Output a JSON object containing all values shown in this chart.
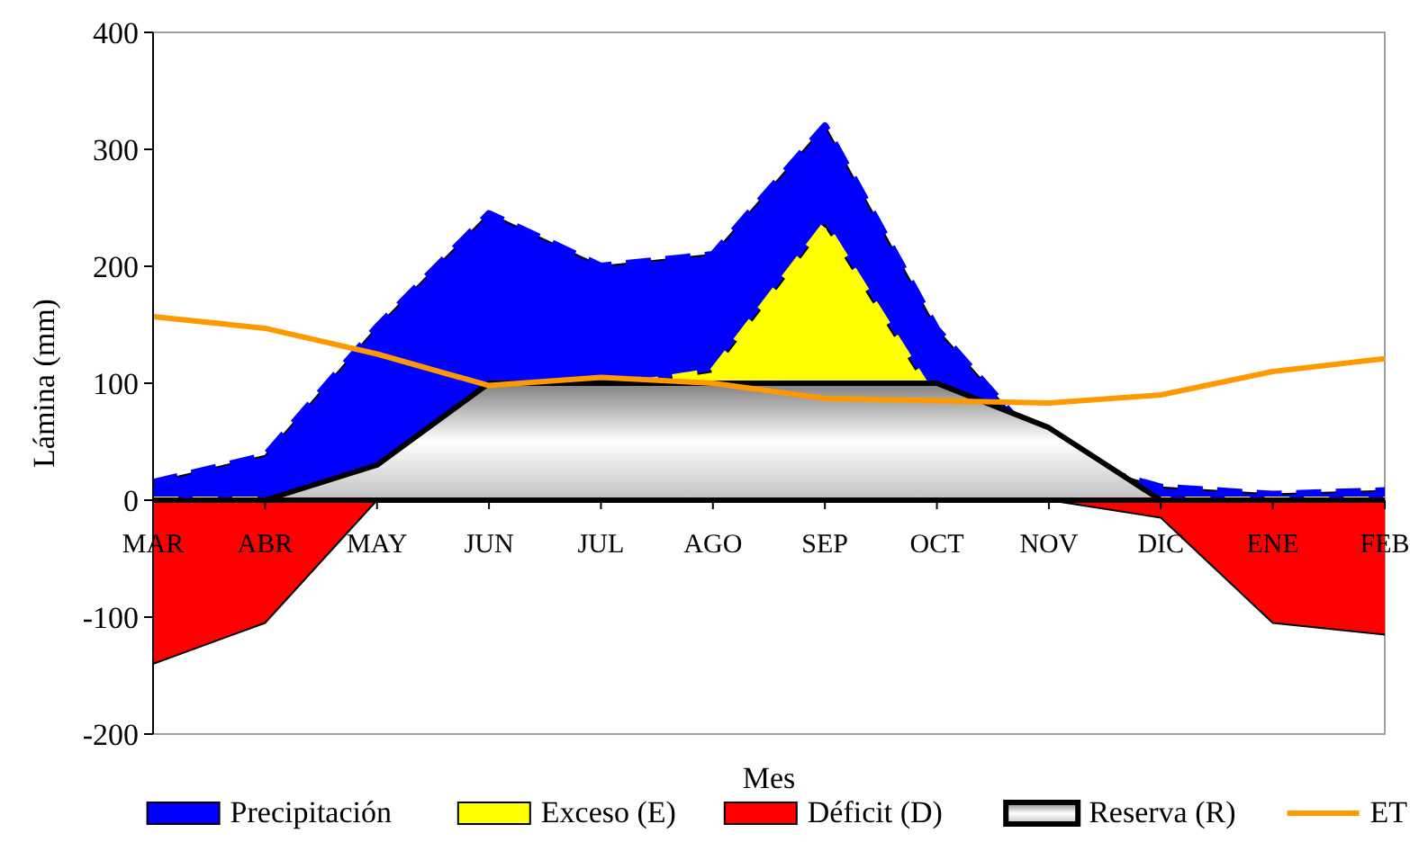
{
  "chart_data": {
    "type": "area",
    "xlabel": "Mes",
    "ylabel": "Lámina (mm)",
    "categories": [
      "MAR",
      "ABR",
      "MAY",
      "JUN",
      "JUL",
      "AGO",
      "SEP",
      "OCT",
      "NOV",
      "DIC",
      "ENE",
      "FEB"
    ],
    "ylim": [
      -200,
      400
    ],
    "yticks": [
      -200,
      -100,
      0,
      100,
      200,
      300,
      400
    ],
    "legend": "bottom",
    "series": [
      {
        "name": "Precipitación",
        "color": "#0000ff",
        "line_style": "dashed",
        "values": [
          15,
          38,
          148,
          245,
          200,
          210,
          320,
          146,
          38,
          11,
          5,
          8
        ]
      },
      {
        "name": "Exceso (E)",
        "color": "#ffff00",
        "line_style": "dashed",
        "values": [
          0,
          0,
          0,
          78,
          95,
          110,
          235,
          83,
          10,
          0,
          0,
          0
        ]
      },
      {
        "name": "Déficit (D)",
        "color": "#ff0000",
        "line_style": "solid",
        "values": [
          -140,
          -105,
          0,
          0,
          0,
          0,
          0,
          0,
          0,
          -15,
          -105,
          -115
        ]
      },
      {
        "name": "Reserva (R)",
        "color": "#c0c0c0",
        "line_style": "solid",
        "values": [
          0,
          0,
          30,
          100,
          100,
          100,
          100,
          100,
          62,
          0,
          0,
          0
        ]
      },
      {
        "name": "ET",
        "type": "line",
        "color": "#ff9900",
        "line_style": "solid",
        "values": [
          157,
          147,
          125,
          98,
          105,
          100,
          87,
          85,
          83,
          90,
          110,
          121
        ]
      }
    ]
  }
}
